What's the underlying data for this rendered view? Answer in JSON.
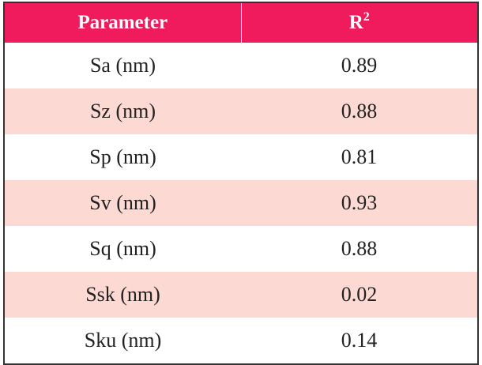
{
  "table": {
    "header": [
      {
        "text": "Parameter"
      },
      {
        "text": "R",
        "sup": "2"
      }
    ],
    "rows": [
      [
        "Sa (nm)",
        0.89
      ],
      [
        "Sz (nm)",
        0.88
      ],
      [
        "Sp (nm)",
        0.81
      ],
      [
        "Sv (nm)",
        0.93
      ],
      [
        "Sq (nm)",
        0.88
      ],
      [
        "Ssk (nm)",
        0.02
      ],
      [
        "Sku (nm)",
        0.14
      ]
    ]
  }
}
